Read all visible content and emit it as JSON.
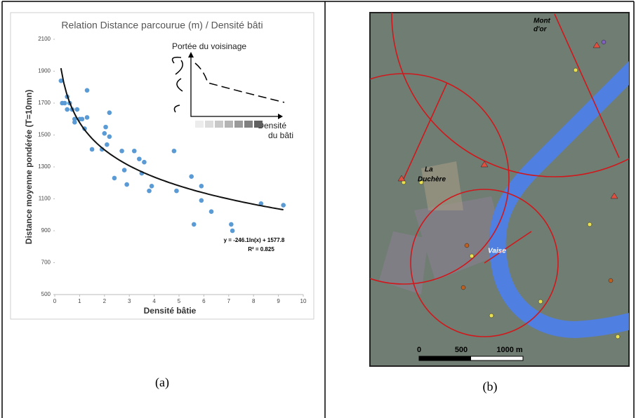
{
  "chart_data": {
    "type": "scatter",
    "title": "Relation  Distance parcourue (m) / Densité bâti",
    "x_label": "Densité bâtie",
    "y_label": "Distance  moyenne pondérée (T=10mn)",
    "x": [
      0.25,
      0.3,
      0.4,
      0.5,
      0.5,
      0.6,
      0.7,
      0.8,
      0.8,
      0.9,
      1.0,
      1.1,
      1.2,
      1.3,
      1.3,
      1.5,
      1.9,
      2.0,
      2.05,
      2.1,
      2.2,
      2.2,
      2.4,
      2.7,
      2.8,
      2.9,
      3.2,
      3.4,
      3.5,
      3.6,
      3.8,
      3.9,
      4.8,
      4.9,
      5.5,
      5.6,
      5.9,
      5.9,
      6.3,
      7.1,
      7.15,
      8.3,
      9.2
    ],
    "values": [
      1840,
      1700,
      1700,
      1660,
      1740,
      1700,
      1660,
      1600,
      1580,
      1660,
      1600,
      1600,
      1540,
      1780,
      1610,
      1410,
      1410,
      1510,
      1550,
      1440,
      1490,
      1640,
      1230,
      1400,
      1280,
      1190,
      1400,
      1350,
      1260,
      1330,
      1150,
      1180,
      1400,
      1150,
      1240,
      940,
      1090,
      1180,
      1020,
      940,
      900,
      1070,
      1060
    ],
    "color": "#5b9bd5",
    "xlim": [
      0,
      10
    ],
    "xticks": [
      0,
      1,
      2,
      3,
      4,
      5,
      6,
      7,
      8,
      9,
      10
    ],
    "ylim": [
      500,
      2100
    ],
    "yticks": [
      500,
      700,
      900,
      1100,
      1300,
      1500,
      1700,
      1900,
      2100
    ],
    "trendline": {
      "slope": -246.1,
      "intercept": 1577.8,
      "equation": "y = -246.1ln(x) + 1577.8",
      "r2": "R² = 0.825"
    },
    "inset": {
      "title": "Portée du voisinage",
      "x_label_1": "Densité",
      "x_label_2": "du bâti"
    }
  },
  "map": {
    "labels": [
      "Mont",
      "d'or",
      "La",
      "Duchère",
      "Vaise"
    ],
    "scale": [
      "0",
      "500",
      "1000 m"
    ]
  },
  "captions": [
    "(a)",
    "(b)"
  ]
}
